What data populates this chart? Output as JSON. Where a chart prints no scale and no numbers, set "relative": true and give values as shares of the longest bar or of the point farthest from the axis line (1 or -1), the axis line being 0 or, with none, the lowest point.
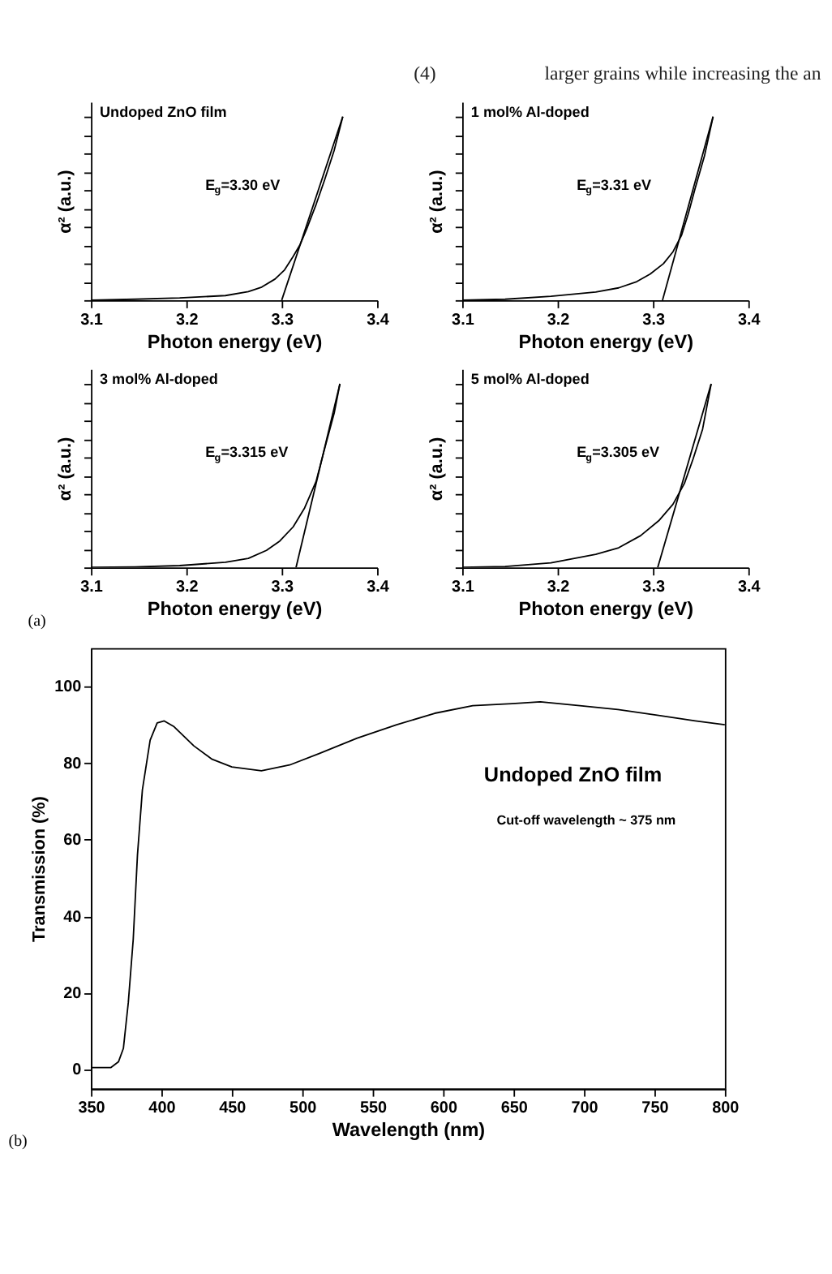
{
  "chart_data": [
    {
      "type": "other",
      "annotations": [
        "(4)",
        "larger grains while increasing the an"
      ]
    },
    {
      "type": "line",
      "title": "Undoped ZnO film",
      "xlabel": "Photon energy (eV)",
      "ylabel": "α² (a.u.)",
      "relative": true,
      "xlim": [
        3.1,
        3.4
      ],
      "xticks": [
        3.1,
        3.2,
        3.3,
        3.4
      ],
      "tick_labels": "x",
      "grid": false,
      "line_style": "solid",
      "marker": "none",
      "annotations": [
        "E$_{g}$=3.30 eV"
      ],
      "series": [
        {
          "color": "#000000",
          "x": [
            3.1,
            3.146,
            3.193,
            3.241,
            3.265,
            3.279,
            3.293,
            3.303,
            3.312,
            3.319,
            3.326,
            3.336,
            3.345,
            3.355,
            3.364
          ],
          "values": [
            0,
            0.005,
            0.012,
            0.025,
            0.047,
            0.071,
            0.115,
            0.165,
            0.238,
            0.3,
            0.386,
            0.521,
            0.656,
            0.816,
            1.0
          ]
        },
        {
          "color": "#000000",
          "x": [
            3.3,
            3.364
          ],
          "values": [
            0,
            1.0
          ]
        }
      ]
    },
    {
      "type": "line",
      "title": "1 mol% Al-doped",
      "xlabel": "Photon energy (eV)",
      "ylabel": "α² (a.u.)",
      "relative": true,
      "xlim": [
        3.1,
        3.4
      ],
      "xticks": [
        3.1,
        3.2,
        3.3,
        3.4
      ],
      "tick_labels": "x",
      "grid": false,
      "line_style": "solid",
      "marker": "none",
      "annotations": [
        "E$_{g}$=3.31 eV"
      ],
      "series": [
        {
          "color": "#000000",
          "x": [
            3.1,
            3.145,
            3.193,
            3.24,
            3.264,
            3.283,
            3.297,
            3.311,
            3.321,
            3.33,
            3.337,
            3.344,
            3.354,
            3.363
          ],
          "values": [
            0,
            0.005,
            0.021,
            0.044,
            0.067,
            0.101,
            0.142,
            0.199,
            0.264,
            0.354,
            0.47,
            0.605,
            0.786,
            1.0
          ]
        },
        {
          "color": "#000000",
          "x": [
            3.31,
            3.363
          ],
          "values": [
            0,
            1.0
          ]
        }
      ]
    },
    {
      "type": "line",
      "title": "3 mol% Al-doped",
      "xlabel": "Photon energy (eV)",
      "ylabel": "α² (a.u.)",
      "relative": true,
      "xlim": [
        3.1,
        3.4
      ],
      "xticks": [
        3.1,
        3.2,
        3.3,
        3.4
      ],
      "tick_labels": "x",
      "grid": false,
      "line_style": "solid",
      "marker": "none",
      "annotations": [
        "E$_{g}$=3.315 eV",
        "(a)"
      ],
      "series": [
        {
          "color": "#000000",
          "x": [
            3.1,
            3.146,
            3.193,
            3.241,
            3.265,
            3.284,
            3.298,
            3.312,
            3.324,
            3.336,
            3.345,
            3.355,
            3.361
          ],
          "values": [
            0,
            0.003,
            0.01,
            0.028,
            0.049,
            0.093,
            0.144,
            0.221,
            0.324,
            0.468,
            0.648,
            0.841,
            1.0
          ]
        },
        {
          "color": "#000000",
          "x": [
            3.315,
            3.361
          ],
          "values": [
            0,
            1.0
          ]
        }
      ]
    },
    {
      "type": "line",
      "title": "5 mol% Al-doped",
      "xlabel": "Photon energy (eV)",
      "ylabel": "α² (a.u.)",
      "relative": true,
      "xlim": [
        3.1,
        3.4
      ],
      "xticks": [
        3.1,
        3.2,
        3.3,
        3.4
      ],
      "tick_labels": "x",
      "grid": false,
      "line_style": "solid",
      "marker": "none",
      "annotations": [
        "E$_{g}$=3.305 eV"
      ],
      "series": [
        {
          "color": "#000000",
          "x": [
            3.1,
            3.145,
            3.193,
            3.24,
            3.264,
            3.287,
            3.306,
            3.321,
            3.333,
            3.342,
            3.352,
            3.361
          ],
          "values": [
            0,
            0.005,
            0.025,
            0.071,
            0.107,
            0.173,
            0.254,
            0.344,
            0.458,
            0.59,
            0.753,
            1.0
          ]
        },
        {
          "color": "#000000",
          "x": [
            3.305,
            3.361
          ],
          "values": [
            0,
            1.0
          ]
        }
      ]
    },
    {
      "type": "line",
      "xlabel": "Wavelength (nm)",
      "ylabel": "Transmission (%)",
      "xlim": [
        350,
        800
      ],
      "ylim": [
        -5,
        110
      ],
      "xticks": [
        350,
        400,
        450,
        500,
        550,
        600,
        650,
        700,
        750,
        800
      ],
      "yticks": [
        0,
        20,
        40,
        60,
        80,
        100
      ],
      "grid": false,
      "line_style": "solid",
      "marker": "none",
      "annotations": [
        "Undoped ZnO film",
        "Cut-off wavelength ~ 375 nm",
        "(b)"
      ],
      "series": [
        {
          "color": "#000000",
          "x": [
            350,
            364,
            369.5,
            373,
            376.5,
            380,
            383,
            386.5,
            392,
            397,
            402,
            409,
            423,
            436,
            450,
            471,
            491,
            512,
            539,
            567,
            594,
            621,
            649,
            669,
            697,
            724,
            752,
            779,
            800
          ],
          "values": [
            0.5,
            0.5,
            2,
            5.5,
            17.5,
            34,
            56,
            73,
            86,
            90.5,
            91,
            89.5,
            84.5,
            81,
            79,
            78,
            79.5,
            82.5,
            86.5,
            90,
            93,
            95,
            95.5,
            96,
            95,
            94,
            92.5,
            91,
            90
          ]
        }
      ]
    }
  ]
}
